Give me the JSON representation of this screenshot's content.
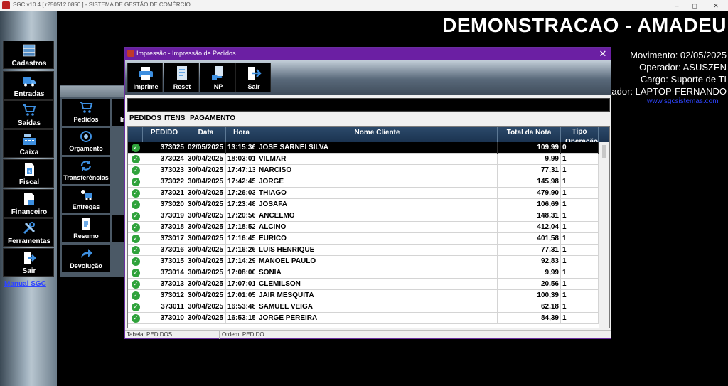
{
  "os_window": {
    "title": "SGC v10.4 [ r250512.0850 ] - SISTEMA DE GESTÃO DE COMÉRCIO",
    "min": "–",
    "max": "◻",
    "close": "✕"
  },
  "header": {
    "company": "DEMONSTRACAO - AMADEU",
    "movimento": "Movimento: 02/05/2025",
    "operador": "Operador: ASUSZEN",
    "cargo": "Cargo: Suporte de TI",
    "computador": "tador: LAPTOP-FERNANDO",
    "site": "www.sgcsistemas.com"
  },
  "sidebar": {
    "items": [
      {
        "label": "Cadastros",
        "icon": "cabinet-icon"
      },
      {
        "label": "Entradas",
        "icon": "truck-icon"
      },
      {
        "label": "Saídas",
        "icon": "cart-icon"
      },
      {
        "label": "Caixa",
        "icon": "cash-register-icon"
      },
      {
        "label": "Fiscal",
        "icon": "fiscal-document-icon"
      },
      {
        "label": "Financeiro",
        "icon": "finance-document-icon"
      },
      {
        "label": "Ferramentas",
        "icon": "tools-icon"
      },
      {
        "label": "Sair",
        "icon": "exit-icon"
      }
    ],
    "manual_link": "Manual SGC"
  },
  "submenu": {
    "items": [
      {
        "label": "Pedidos",
        "icon": "cart-icon"
      },
      {
        "label": "Orçamento",
        "icon": "target-icon"
      },
      {
        "label": "Transferências",
        "icon": "refresh-icon"
      },
      {
        "label": "Entregas",
        "icon": "delivery-icon"
      },
      {
        "label": "Resumo",
        "icon": "summary-icon"
      },
      {
        "label": "Devolução",
        "icon": "return-arrow-icon"
      }
    ],
    "stub_text": "Im"
  },
  "dialog": {
    "title": "Impressão - Impressão de Pedidos",
    "close": "✕",
    "toolbar": [
      {
        "label": "Imprime",
        "icon": "printer-icon"
      },
      {
        "label": "Reset",
        "icon": "reset-document-icon"
      },
      {
        "label": "NP",
        "icon": "hand-document-icon"
      },
      {
        "label": "Sair",
        "icon": "exit-icon"
      }
    ],
    "tabs": [
      "PEDIDOS",
      "ITENS",
      "PAGAMENTO"
    ],
    "grid": {
      "columns": [
        "PEDIDO",
        "Data",
        "Hora",
        "Nome Cliente",
        "Total da Nota",
        "Tipo Operação"
      ],
      "rows": [
        [
          "373025",
          "02/05/2025",
          "13:15:36",
          "JOSE SARNEI SILVA",
          "109,99",
          "0"
        ],
        [
          "373024",
          "30/04/2025",
          "18:03:01",
          "VILMAR",
          "9,99",
          "1"
        ],
        [
          "373023",
          "30/04/2025",
          "17:47:13",
          "NARCISO",
          "77,31",
          "1"
        ],
        [
          "373022",
          "30/04/2025",
          "17:42:45",
          "JORGE",
          "145,98",
          "1"
        ],
        [
          "373021",
          "30/04/2025",
          "17:26:03",
          "THIAGO",
          "479,90",
          "1"
        ],
        [
          "373020",
          "30/04/2025",
          "17:23:48",
          "JOSAFA",
          "106,69",
          "1"
        ],
        [
          "373019",
          "30/04/2025",
          "17:20:56",
          "ANCELMO",
          "148,31",
          "1"
        ],
        [
          "373018",
          "30/04/2025",
          "17:18:52",
          "ALCINO",
          "412,04",
          "1"
        ],
        [
          "373017",
          "30/04/2025",
          "17:16:45",
          "EURICO",
          "401,58",
          "1"
        ],
        [
          "373016",
          "30/04/2025",
          "17:16:26",
          "LUIS HENRIQUE",
          "77,31",
          "1"
        ],
        [
          "373015",
          "30/04/2025",
          "17:14:29",
          "MANOEL PAULO",
          "92,83",
          "1"
        ],
        [
          "373014",
          "30/04/2025",
          "17:08:00",
          "SONIA",
          "9,99",
          "1"
        ],
        [
          "373013",
          "30/04/2025",
          "17:07:01",
          "CLEMILSON",
          "20,56",
          "1"
        ],
        [
          "373012",
          "30/04/2025",
          "17:01:05",
          "JAIR MESQUITA",
          "100,39",
          "1"
        ],
        [
          "373011",
          "30/04/2025",
          "16:53:48",
          "SAMUEL VEIGA",
          "62,18",
          "1"
        ],
        [
          "373010",
          "30/04/2025",
          "16:53:15",
          "JORGE PEREIRA",
          "84,39",
          "1"
        ]
      ],
      "selected_row": 0,
      "status_icon": "check-circle-icon"
    },
    "status": {
      "table": "Tabela: PEDIDOS",
      "order": "Ordem: PEDIDO"
    }
  },
  "colors": {
    "dialog_title": "#6b1fa3",
    "link": "#2f45ff",
    "grid_header": "#1b3350",
    "ok_green": "#2fa23b"
  }
}
